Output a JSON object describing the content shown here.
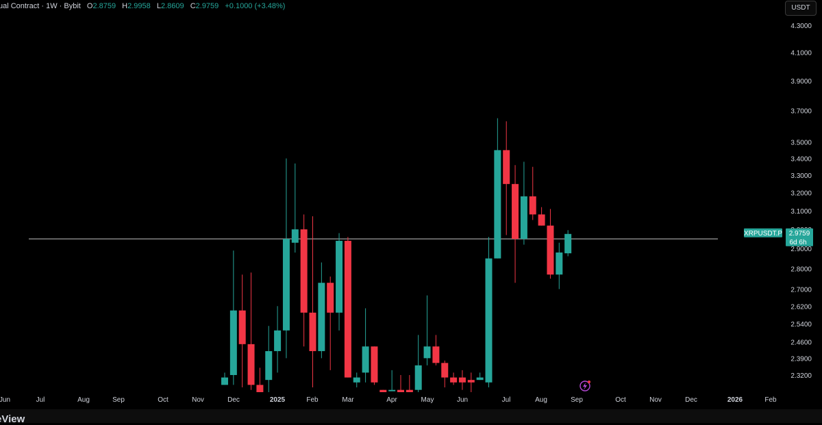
{
  "header": {
    "symbol_text": "ual Contract · 1W · Bybit",
    "open_label": "O",
    "open_value": "2.8759",
    "high_label": "H",
    "high_value": "2.9958",
    "low_label": "L",
    "low_value": "2.8609",
    "close_label": "C",
    "close_value": "2.9759",
    "change_text": "+0.1000 (+3.48%)"
  },
  "currency_button": "USDT",
  "footer_brand": "eView",
  "colors": {
    "up": "#26a69a",
    "down": "#f23645",
    "background": "#000000",
    "axis_text": "#d1d4dc",
    "horizontal_line": "#b0b0b0"
  },
  "price_label": {
    "symbol": "XRPUSDT.P",
    "price": "2.9759",
    "countdown": "6d 6h"
  },
  "horizontal_line_price": 2.95,
  "chart_data": {
    "type": "candlestick",
    "timeframe": "1W",
    "y_scale": "log",
    "y_range": [
      2.25,
      4.35
    ],
    "y_ticks": [
      "4.3000",
      "4.1000",
      "3.9000",
      "3.7000",
      "3.5000",
      "3.4000",
      "3.3000",
      "3.2000",
      "3.1000",
      "3.0000",
      "2.9000",
      "2.8000",
      "2.7000",
      "2.6200",
      "2.5400",
      "2.4600",
      "2.3900",
      "2.3200"
    ],
    "x_labels": [
      "Jun",
      "Jul",
      "Aug",
      "Sep",
      "Oct",
      "Nov",
      "Dec",
      "2025",
      "Feb",
      "Mar",
      "Apr",
      "May",
      "Jun",
      "Jul",
      "Aug",
      "Sep",
      "Oct",
      "Nov",
      "Dec",
      "2026",
      "Feb"
    ],
    "candles": [
      {
        "o": 2.28,
        "h": 2.33,
        "l": 2.28,
        "c": 2.31
      },
      {
        "o": 2.32,
        "h": 2.89,
        "l": 2.28,
        "c": 2.6
      },
      {
        "o": 2.6,
        "h": 2.77,
        "l": 2.27,
        "c": 2.45
      },
      {
        "o": 2.45,
        "h": 2.78,
        "l": 2.26,
        "c": 2.28
      },
      {
        "o": 2.28,
        "h": 2.35,
        "l": 2.22,
        "c": 2.22
      },
      {
        "o": 2.3,
        "h": 2.53,
        "l": 2.22,
        "c": 2.42
      },
      {
        "o": 2.42,
        "h": 2.62,
        "l": 2.33,
        "c": 2.51
      },
      {
        "o": 2.51,
        "h": 3.4,
        "l": 2.39,
        "c": 2.95
      },
      {
        "o": 2.93,
        "h": 3.37,
        "l": 2.88,
        "c": 3.0
      },
      {
        "o": 3.0,
        "h": 3.08,
        "l": 2.44,
        "c": 2.59
      },
      {
        "o": 2.59,
        "h": 3.07,
        "l": 2.27,
        "c": 2.42
      },
      {
        "o": 2.42,
        "h": 2.83,
        "l": 2.39,
        "c": 2.73
      },
      {
        "o": 2.73,
        "h": 2.76,
        "l": 2.34,
        "c": 2.59
      },
      {
        "o": 2.59,
        "h": 2.98,
        "l": 2.51,
        "c": 2.94
      },
      {
        "o": 2.94,
        "h": 2.96,
        "l": 2.31,
        "c": 2.31
      },
      {
        "o": 2.29,
        "h": 2.33,
        "l": 2.27,
        "c": 2.31
      },
      {
        "o": 2.33,
        "h": 2.61,
        "l": 2.29,
        "c": 2.44
      },
      {
        "o": 2.44,
        "h": 2.44,
        "l": 2.28,
        "c": 2.29
      },
      {
        "o": 2.26,
        "h": 2.26,
        "l": 2.25,
        "c": 2.25
      },
      {
        "o": 2.26,
        "h": 2.34,
        "l": 2.26,
        "c": 2.26
      },
      {
        "o": 2.26,
        "h": 2.32,
        "l": 2.24,
        "c": 2.25
      },
      {
        "o": 2.26,
        "h": 2.32,
        "l": 2.23,
        "c": 2.23
      },
      {
        "o": 2.26,
        "h": 2.49,
        "l": 2.23,
        "c": 2.36
      },
      {
        "o": 2.39,
        "h": 2.67,
        "l": 2.36,
        "c": 2.44
      },
      {
        "o": 2.44,
        "h": 2.49,
        "l": 2.36,
        "c": 2.37
      },
      {
        "o": 2.37,
        "h": 2.38,
        "l": 2.27,
        "c": 2.31
      },
      {
        "o": 2.31,
        "h": 2.33,
        "l": 2.28,
        "c": 2.29
      },
      {
        "o": 2.31,
        "h": 2.34,
        "l": 2.26,
        "c": 2.29
      },
      {
        "o": 2.3,
        "h": 2.33,
        "l": 2.24,
        "c": 2.29
      },
      {
        "o": 2.3,
        "h": 2.33,
        "l": 2.3,
        "c": 2.31
      },
      {
        "o": 2.29,
        "h": 2.96,
        "l": 2.27,
        "c": 2.85
      },
      {
        "o": 2.85,
        "h": 3.65,
        "l": 2.85,
        "c": 3.45
      },
      {
        "o": 3.45,
        "h": 3.63,
        "l": 2.97,
        "c": 3.25
      },
      {
        "o": 3.25,
        "h": 3.36,
        "l": 2.73,
        "c": 2.95
      },
      {
        "o": 2.95,
        "h": 3.38,
        "l": 2.92,
        "c": 3.18
      },
      {
        "o": 3.18,
        "h": 3.35,
        "l": 3.05,
        "c": 3.08
      },
      {
        "o": 3.08,
        "h": 3.12,
        "l": 3.02,
        "c": 3.02
      },
      {
        "o": 3.02,
        "h": 3.11,
        "l": 2.75,
        "c": 2.77
      },
      {
        "o": 2.77,
        "h": 2.93,
        "l": 2.7,
        "c": 2.88
      },
      {
        "o": 2.8759,
        "h": 2.9958,
        "l": 2.8609,
        "c": 2.9759
      }
    ]
  }
}
